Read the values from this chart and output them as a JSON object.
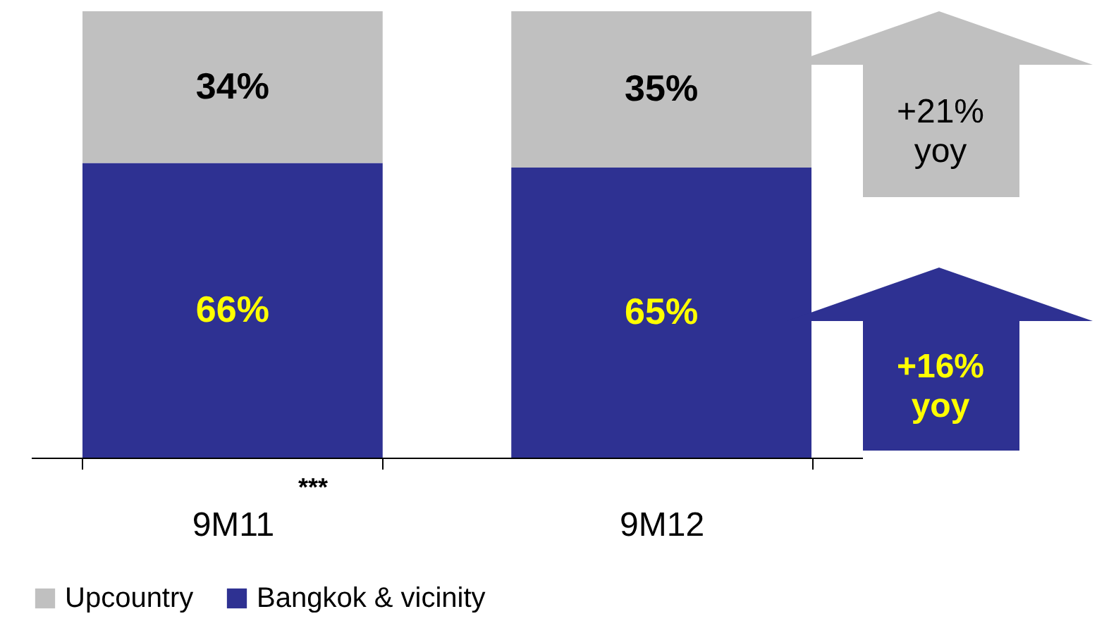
{
  "chart_data": {
    "type": "bar",
    "stacked": true,
    "categories": [
      "9M11",
      "9M12"
    ],
    "series": [
      {
        "name": "Bangkok & vicinity",
        "color": "#2e3192",
        "values": [
          66,
          65
        ],
        "value_labels": [
          "66%",
          "65%"
        ]
      },
      {
        "name": "Upcountry",
        "color": "#c0c0c0",
        "values": [
          34,
          35
        ],
        "value_labels": [
          "34%",
          "35%"
        ]
      }
    ],
    "legend": "bottom",
    "annotations": [
      "***",
      "+21% yoy",
      "+16% yoy"
    ]
  }
}
